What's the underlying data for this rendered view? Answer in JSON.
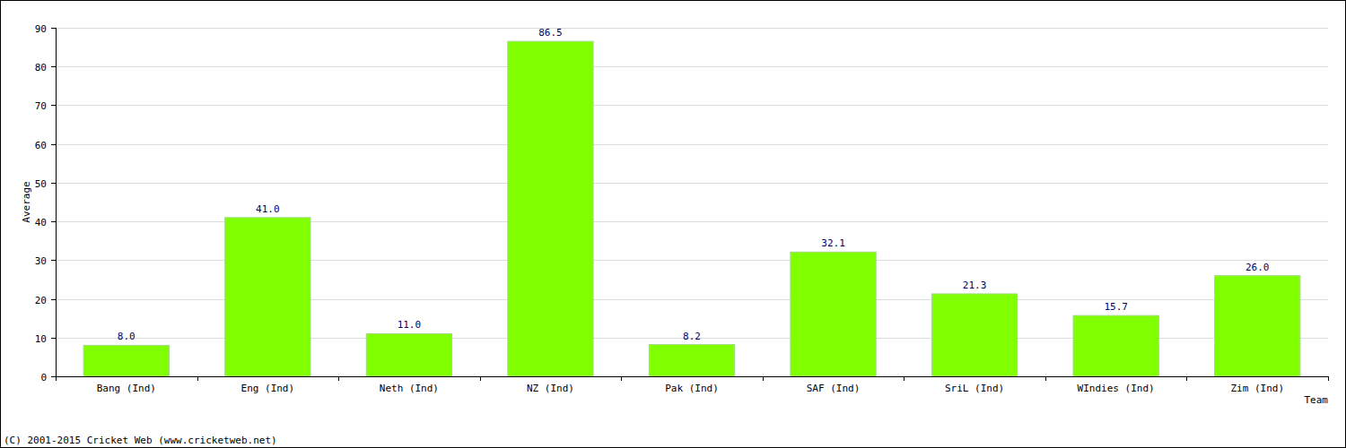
{
  "chart_data": {
    "type": "bar",
    "categories": [
      "Bang (Ind)",
      "Eng (Ind)",
      "Neth (Ind)",
      "NZ (Ind)",
      "Pak (Ind)",
      "SAF (Ind)",
      "SriL (Ind)",
      "WIndies (Ind)",
      "Zim (Ind)"
    ],
    "values": [
      8.0,
      41.0,
      11.0,
      86.5,
      8.2,
      32.1,
      21.3,
      15.7,
      26.0
    ],
    "value_labels": [
      "8.0",
      "41.0",
      "11.0",
      "86.5",
      "8.2",
      "32.1",
      "21.3",
      "15.7",
      "26.0"
    ],
    "color": "#7fff00",
    "y_label": "Average",
    "x_label": "Team",
    "annotations": [
      "(C) 2001-2015 Cricket Web (www.cricketweb.net)"
    ],
    "ylim": [
      0,
      90
    ],
    "yticks": [
      0,
      10,
      20,
      30,
      40,
      50,
      60,
      70,
      80,
      90
    ],
    "grid": true,
    "data_labels": true
  }
}
